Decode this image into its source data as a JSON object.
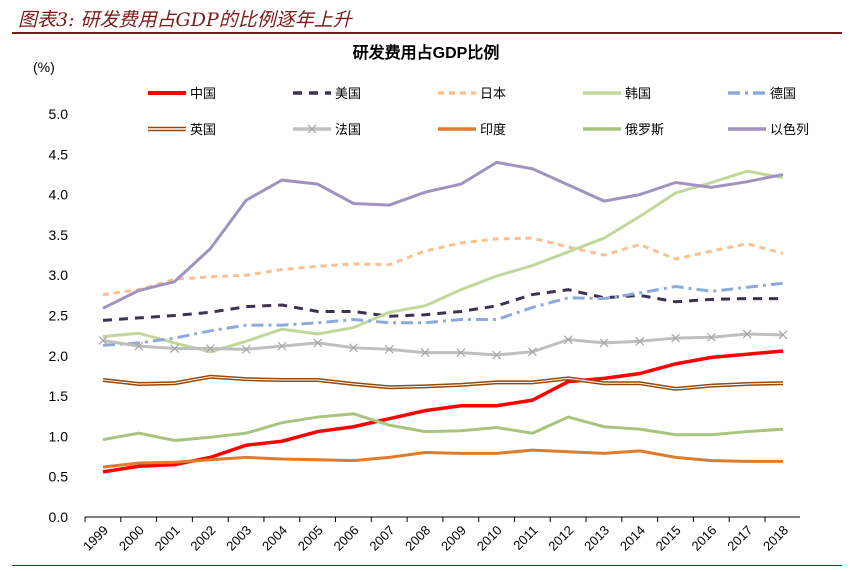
{
  "figure_title": "图表3: 研发费用占GDP的比例逐年上升",
  "chart_data": {
    "type": "line",
    "title": "研发费用占GDP比例",
    "ylabel": "(%)",
    "xlabel": "",
    "ylim": [
      0,
      5.0
    ],
    "yticks": [
      "0.0",
      "0.5",
      "1.0",
      "1.5",
      "2.0",
      "2.5",
      "3.0",
      "3.5",
      "4.0",
      "4.5",
      "5.0"
    ],
    "grid": false,
    "legend_position": "top",
    "categories": [
      "1999",
      "2000",
      "2001",
      "2002",
      "2003",
      "2004",
      "2005",
      "2006",
      "2007",
      "2008",
      "2009",
      "2010",
      "2011",
      "2012",
      "2013",
      "2014",
      "2015",
      "2016",
      "2017",
      "2018"
    ],
    "series": [
      {
        "name": "中国",
        "color": "#ff0000",
        "style": "solid",
        "values": [
          0.56,
          0.63,
          0.65,
          0.74,
          0.89,
          0.94,
          1.06,
          1.12,
          1.22,
          1.32,
          1.38,
          1.38,
          1.45,
          1.68,
          1.72,
          1.78,
          1.9,
          1.98,
          2.02,
          2.06
        ]
      },
      {
        "name": "美国",
        "color": "#3f3151",
        "style": "dash",
        "values": [
          2.44,
          2.47,
          2.5,
          2.54,
          2.61,
          2.63,
          2.55,
          2.55,
          2.49,
          2.51,
          2.55,
          2.62,
          2.76,
          2.82,
          2.72,
          2.75,
          2.67,
          2.7,
          2.71,
          2.71
        ]
      },
      {
        "name": "日本",
        "color": "#fac090",
        "style": "dash-short",
        "values": [
          2.76,
          2.82,
          2.95,
          2.98,
          3.0,
          3.07,
          3.11,
          3.14,
          3.13,
          3.3,
          3.4,
          3.45,
          3.46,
          3.35,
          3.25,
          3.38,
          3.2,
          3.3,
          3.39,
          3.27
        ]
      },
      {
        "name": "韩国",
        "color": "#c3d69b",
        "style": "solid",
        "values": [
          2.24,
          2.28,
          2.16,
          2.05,
          2.18,
          2.33,
          2.27,
          2.35,
          2.54,
          2.62,
          2.82,
          2.99,
          3.12,
          3.29,
          3.46,
          3.73,
          4.02,
          4.15,
          4.29,
          4.21
        ]
      },
      {
        "name": "德国",
        "color": "#8eaadb",
        "style": "dash-dot",
        "values": [
          2.13,
          2.16,
          2.22,
          2.31,
          2.38,
          2.38,
          2.41,
          2.45,
          2.41,
          2.41,
          2.45,
          2.45,
          2.6,
          2.72,
          2.71,
          2.78,
          2.86,
          2.8,
          2.85,
          2.9
        ]
      },
      {
        "name": "英国",
        "color": "#984807",
        "style": "double",
        "values": [
          1.7,
          1.65,
          1.66,
          1.74,
          1.71,
          1.7,
          1.7,
          1.65,
          1.61,
          1.62,
          1.64,
          1.67,
          1.67,
          1.72,
          1.66,
          1.66,
          1.59,
          1.63,
          1.65,
          1.66
        ]
      },
      {
        "name": "法国",
        "color": "#bfbfbf",
        "style": "solid-x",
        "values": [
          2.19,
          2.12,
          2.09,
          2.09,
          2.08,
          2.12,
          2.16,
          2.1,
          2.08,
          2.04,
          2.04,
          2.01,
          2.05,
          2.2,
          2.16,
          2.18,
          2.22,
          2.23,
          2.27,
          2.26
        ]
      },
      {
        "name": "印度",
        "color": "#e07b2b",
        "style": "solid",
        "values": [
          0.62,
          0.67,
          0.68,
          0.71,
          0.74,
          0.72,
          0.71,
          0.7,
          0.74,
          0.8,
          0.79,
          0.79,
          0.83,
          0.81,
          0.79,
          0.82,
          0.74,
          0.7,
          0.69,
          0.69
        ]
      },
      {
        "name": "俄罗斯",
        "color": "#a9c47f",
        "style": "solid",
        "values": [
          0.96,
          1.04,
          0.95,
          0.99,
          1.04,
          1.17,
          1.24,
          1.28,
          1.14,
          1.06,
          1.07,
          1.11,
          1.04,
          1.24,
          1.12,
          1.09,
          1.02,
          1.02,
          1.06,
          1.09
        ]
      },
      {
        "name": "以色列",
        "color": "#a093c0",
        "style": "solid",
        "values": [
          2.59,
          2.81,
          2.92,
          3.33,
          3.93,
          4.18,
          4.13,
          3.89,
          3.87,
          4.03,
          4.13,
          4.4,
          4.32,
          4.12,
          3.92,
          4.0,
          4.15,
          4.09,
          4.16,
          4.25
        ]
      }
    ]
  }
}
